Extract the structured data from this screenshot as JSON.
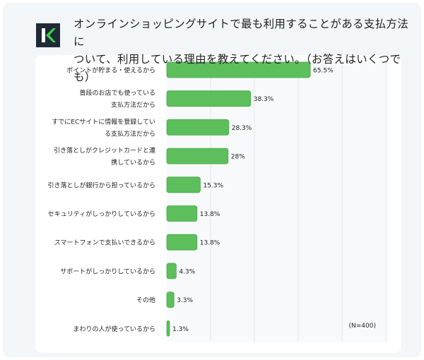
{
  "header": {
    "title_line1": "オンラインショッピングサイトで最も利用することがある支払方法に",
    "title_line2": "ついて、利用している理由を教えてください。（お答えはいくつでも）",
    "logo": "K"
  },
  "chart_data": {
    "type": "bar",
    "orientation": "horizontal",
    "categories": [
      [
        "ポイントが貯まる・使えるから"
      ],
      [
        "普段のお店でも使っている",
        "支払方法だから"
      ],
      [
        "すでにECサイトに情報を登録してい",
        "る支払方法だから"
      ],
      [
        "引き落としがクレジットカードと連",
        "携しているから"
      ],
      [
        "引き落としが銀行から担っているから"
      ],
      [
        "セキュリティがしっかりしているから"
      ],
      [
        "スマートフォンで支払いできるから"
      ],
      [
        "サポートがしっかりしているから"
      ],
      [
        "その他"
      ],
      [
        "まわりの人が使っているから"
      ]
    ],
    "values": [
      65.5,
      38.3,
      28.3,
      28,
      15.3,
      13.8,
      13.8,
      4.3,
      3.3,
      1.3
    ],
    "value_labels": [
      "65.5%",
      "38.3%",
      "28.3%",
      "28%",
      "15.3%",
      "13.8%",
      "13.8%",
      "4.3%",
      "3.3%",
      "1.3%"
    ],
    "xlim": [
      0,
      100
    ],
    "grid": true,
    "annotation": "(N=400)",
    "bar_color": "#5cbf5c"
  }
}
